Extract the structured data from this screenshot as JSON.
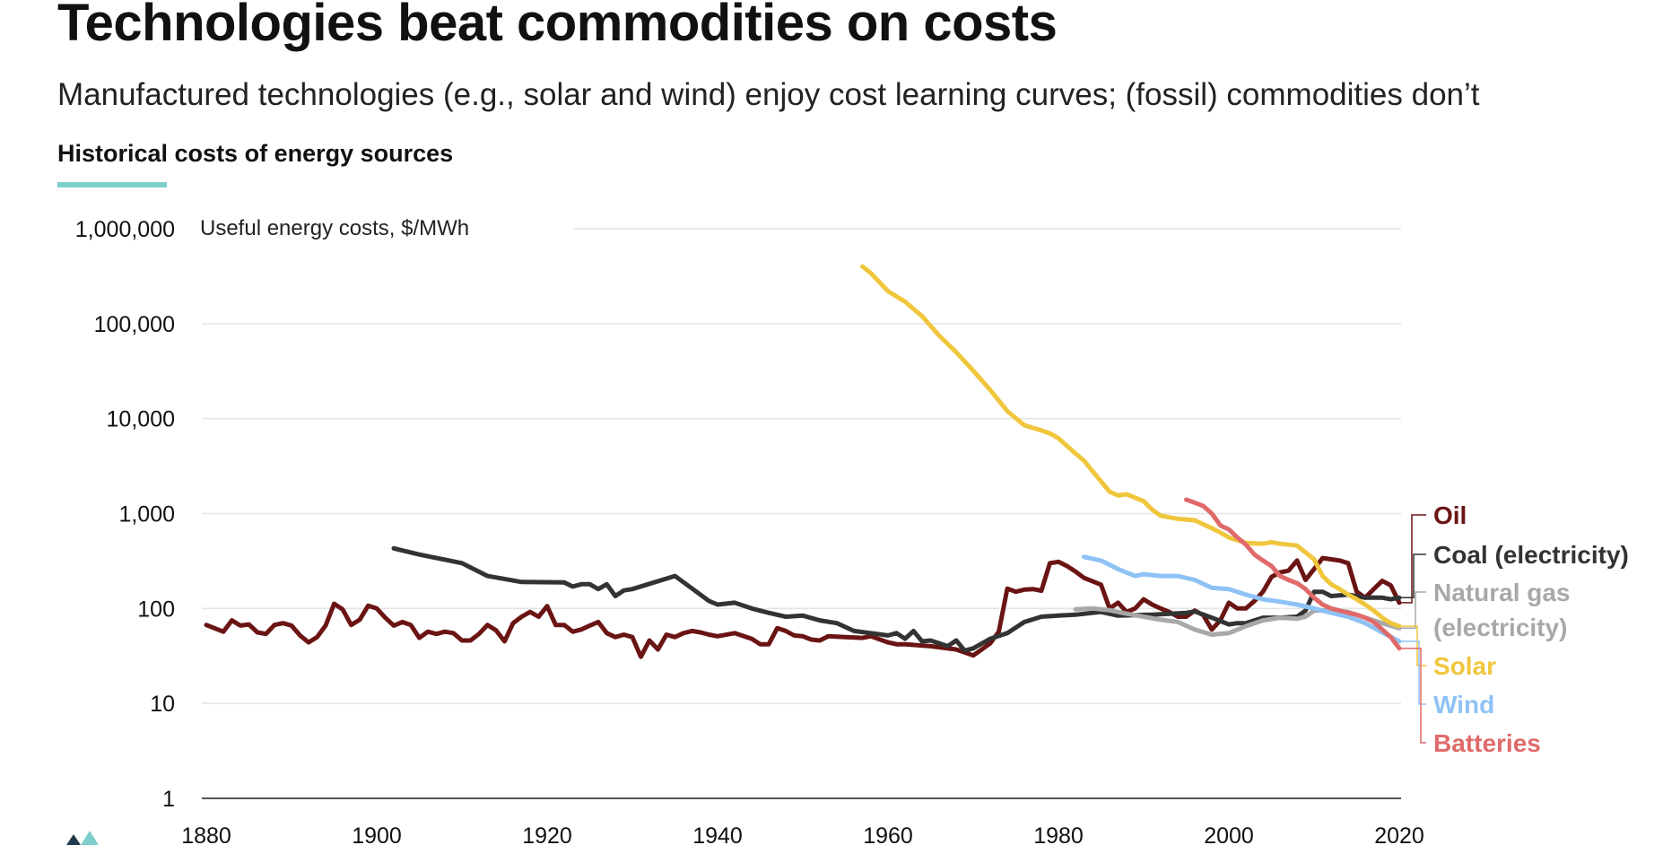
{
  "title": "Technologies beat commodities on costs",
  "subtitle": "Manufactured technologies (e.g., solar and wind) enjoy cost learning curves; (fossil) commodities don’t",
  "section_title": "Historical costs of energy sources",
  "colors": {
    "accent": "#7ecfcb",
    "oil": "#6b1414",
    "coal": "#333333",
    "gas": "#a8a8a8",
    "solar": "#f0c63c",
    "wind": "#8ec2f5",
    "batteries": "#e06a6a"
  },
  "chart_data": {
    "type": "line",
    "title": "Historical costs of energy sources",
    "ylabel": "Useful energy costs, $/MWh",
    "yscale": "log",
    "ylim": [
      1,
      1000000
    ],
    "xlim": [
      1880,
      2021
    ],
    "x_ticks": [
      1880,
      1900,
      1920,
      1940,
      1960,
      1980,
      2000,
      2020
    ],
    "y_ticks": [
      {
        "value": 1,
        "label": "1"
      },
      {
        "value": 10,
        "label": "10"
      },
      {
        "value": 100,
        "label": "100"
      },
      {
        "value": 1000,
        "label": "1,000"
      },
      {
        "value": 10000,
        "label": "10,000"
      },
      {
        "value": 100000,
        "label": "100,000"
      },
      {
        "value": 1000000,
        "label": "1,000,000"
      }
    ],
    "grid": true,
    "legend": "right, inline labels",
    "series": [
      {
        "name": "Oil",
        "color": "#6b1414",
        "x": [
          1880,
          1882,
          1883,
          1884,
          1885,
          1886,
          1887,
          1888,
          1889,
          1890,
          1891,
          1892,
          1893,
          1894,
          1895,
          1896,
          1897,
          1898,
          1899,
          1900,
          1901,
          1902,
          1903,
          1904,
          1905,
          1906,
          1907,
          1908,
          1909,
          1910,
          1911,
          1912,
          1913,
          1914,
          1915,
          1916,
          1917,
          1918,
          1919,
          1920,
          1921,
          1922,
          1923,
          1924,
          1925,
          1926,
          1927,
          1928,
          1929,
          1930,
          1931,
          1932,
          1933,
          1934,
          1935,
          1936,
          1937,
          1938,
          1939,
          1940,
          1942,
          1944,
          1945,
          1946,
          1947,
          1948,
          1949,
          1950,
          1951,
          1952,
          1953,
          1955,
          1957,
          1958,
          1960,
          1961,
          1962,
          1965,
          1968,
          1970,
          1971,
          1972,
          1973,
          1974,
          1975,
          1976,
          1977,
          1978,
          1979,
          1980,
          1981,
          1982,
          1983,
          1985,
          1986,
          1987,
          1988,
          1989,
          1990,
          1991,
          1992,
          1993,
          1994,
          1995,
          1996,
          1997,
          1998,
          1999,
          2000,
          2001,
          2002,
          2003,
          2004,
          2005,
          2006,
          2007,
          2008,
          2009,
          2010,
          2011,
          2012,
          2013,
          2014,
          2015,
          2016,
          2017,
          2018,
          2019,
          2020
        ],
        "values": [
          67,
          57,
          75,
          66,
          68,
          56,
          54,
          67,
          70,
          66,
          52,
          44,
          50,
          66,
          112,
          98,
          67,
          76,
          107,
          100,
          80,
          66,
          72,
          67,
          49,
          57,
          54,
          57,
          55,
          46,
          46,
          54,
          67,
          59,
          45,
          70,
          82,
          92,
          82,
          106,
          67,
          67,
          57,
          60,
          66,
          72,
          55,
          50,
          53,
          50,
          31,
          46,
          37,
          53,
          50,
          55,
          58,
          56,
          53,
          51,
          55,
          48,
          42,
          42,
          62,
          58,
          52,
          51,
          47,
          46,
          51,
          50,
          49,
          51,
          44,
          42,
          42,
          40,
          37,
          32,
          37,
          43,
          57,
          162,
          150,
          158,
          160,
          154,
          300,
          310,
          280,
          245,
          210,
          178,
          100,
          115,
          92,
          100,
          125,
          110,
          100,
          92,
          82,
          82,
          95,
          85,
          60,
          75,
          115,
          100,
          100,
          120,
          150,
          215,
          240,
          250,
          320,
          200,
          260,
          340,
          330,
          320,
          300,
          150,
          130,
          160,
          195,
          175,
          115
        ]
      },
      {
        "name": "Coal (electricity)",
        "color": "#333333",
        "x": [
          1902,
          1905,
          1910,
          1913,
          1917,
          1922,
          1923,
          1924,
          1925,
          1926,
          1927,
          1928,
          1929,
          1930,
          1935,
          1939,
          1940,
          1942,
          1944,
          1946,
          1948,
          1950,
          1952,
          1954,
          1956,
          1958,
          1960,
          1961,
          1962,
          1963,
          1964,
          1965,
          1966,
          1967,
          1968,
          1969,
          1970,
          1972,
          1974,
          1976,
          1978,
          1980,
          1982,
          1984,
          1985,
          1987,
          1989,
          1991,
          1993,
          1995,
          1996,
          1998,
          2000,
          2001,
          2002,
          2004,
          2006,
          2008,
          2009,
          2010,
          2011,
          2012,
          2014,
          2016,
          2018,
          2019,
          2020
        ],
        "values": [
          430,
          370,
          300,
          220,
          190,
          188,
          170,
          180,
          180,
          160,
          180,
          135,
          155,
          160,
          220,
          120,
          110,
          115,
          100,
          90,
          82,
          84,
          75,
          70,
          58,
          55,
          52,
          55,
          48,
          58,
          45,
          46,
          43,
          40,
          46,
          36,
          38,
          48,
          55,
          72,
          82,
          84,
          86,
          90,
          92,
          84,
          85,
          86,
          88,
          90,
          93,
          80,
          68,
          70,
          70,
          80,
          80,
          82,
          95,
          150,
          150,
          135,
          140,
          130,
          130,
          125,
          130
        ]
      },
      {
        "name": "Natural gas (electricity)",
        "color": "#a8a8a8",
        "x": [
          1982,
          1984,
          1986,
          1988,
          1990,
          1992,
          1994,
          1996,
          1998,
          2000,
          2002,
          2004,
          2006,
          2008,
          2009,
          2010,
          2012,
          2014,
          2016,
          2018,
          2020
        ],
        "values": [
          98,
          100,
          96,
          88,
          82,
          76,
          72,
          60,
          53,
          55,
          65,
          75,
          80,
          78,
          82,
          95,
          96,
          92,
          80,
          70,
          62
        ]
      },
      {
        "name": "Solar",
        "color": "#f0c63c",
        "x": [
          1957,
          1958,
          1960,
          1962,
          1964,
          1966,
          1968,
          1970,
          1972,
          1974,
          1976,
          1978,
          1979,
          1980,
          1982,
          1983,
          1984,
          1986,
          1987,
          1988,
          1990,
          1991,
          1992,
          1994,
          1996,
          1998,
          1999,
          2000,
          2002,
          2004,
          2005,
          2006,
          2008,
          2010,
          2011,
          2012,
          2013,
          2014,
          2015,
          2016,
          2017,
          2018,
          2019,
          2020
        ],
        "values": [
          400000,
          340000,
          220000,
          170000,
          120000,
          75000,
          50000,
          32000,
          20000,
          12000,
          8500,
          7500,
          7000,
          6200,
          4300,
          3600,
          2800,
          1700,
          1550,
          1600,
          1350,
          1100,
          950,
          880,
          850,
          700,
          630,
          560,
          490,
          480,
          500,
          480,
          460,
          330,
          220,
          180,
          160,
          140,
          125,
          110,
          95,
          80,
          70,
          65
        ]
      },
      {
        "name": "Wind",
        "color": "#8ec2f5",
        "x": [
          1983,
          1985,
          1987,
          1989,
          1990,
          1992,
          1994,
          1996,
          1998,
          2000,
          2002,
          2004,
          2006,
          2008,
          2010,
          2012,
          2014,
          2016,
          2018,
          2020
        ],
        "values": [
          350,
          320,
          260,
          220,
          230,
          220,
          220,
          200,
          165,
          160,
          140,
          125,
          118,
          110,
          100,
          90,
          82,
          70,
          56,
          45
        ]
      },
      {
        "name": "Batteries",
        "color": "#e06a6a",
        "x": [
          1995,
          1996,
          1997,
          1998,
          1999,
          2000,
          2001,
          2002,
          2003,
          2004,
          2005,
          2006,
          2007,
          2008,
          2009,
          2010,
          2011,
          2012,
          2013,
          2014,
          2015,
          2016,
          2017,
          2018,
          2019,
          2020
        ],
        "values": [
          1400,
          1300,
          1200,
          1000,
          750,
          680,
          560,
          470,
          370,
          320,
          280,
          220,
          200,
          185,
          160,
          130,
          110,
          100,
          95,
          90,
          86,
          80,
          72,
          60,
          50,
          38
        ]
      }
    ]
  }
}
